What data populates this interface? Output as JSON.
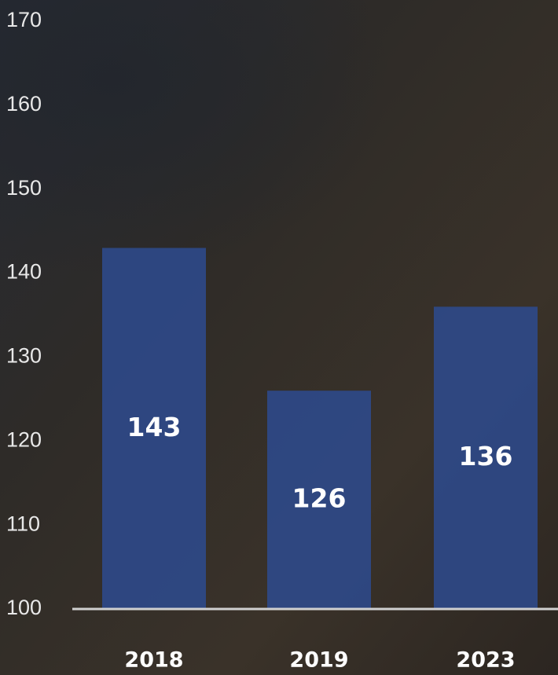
{
  "chart_data": {
    "type": "bar",
    "categories": [
      "2018",
      "2019",
      "2023"
    ],
    "values": [
      143,
      126,
      136
    ],
    "color": "#2e4a8c",
    "ylim": [
      100,
      170
    ],
    "yticks": [
      100,
      110,
      120,
      130,
      140,
      150,
      160,
      170
    ],
    "grid": false
  }
}
